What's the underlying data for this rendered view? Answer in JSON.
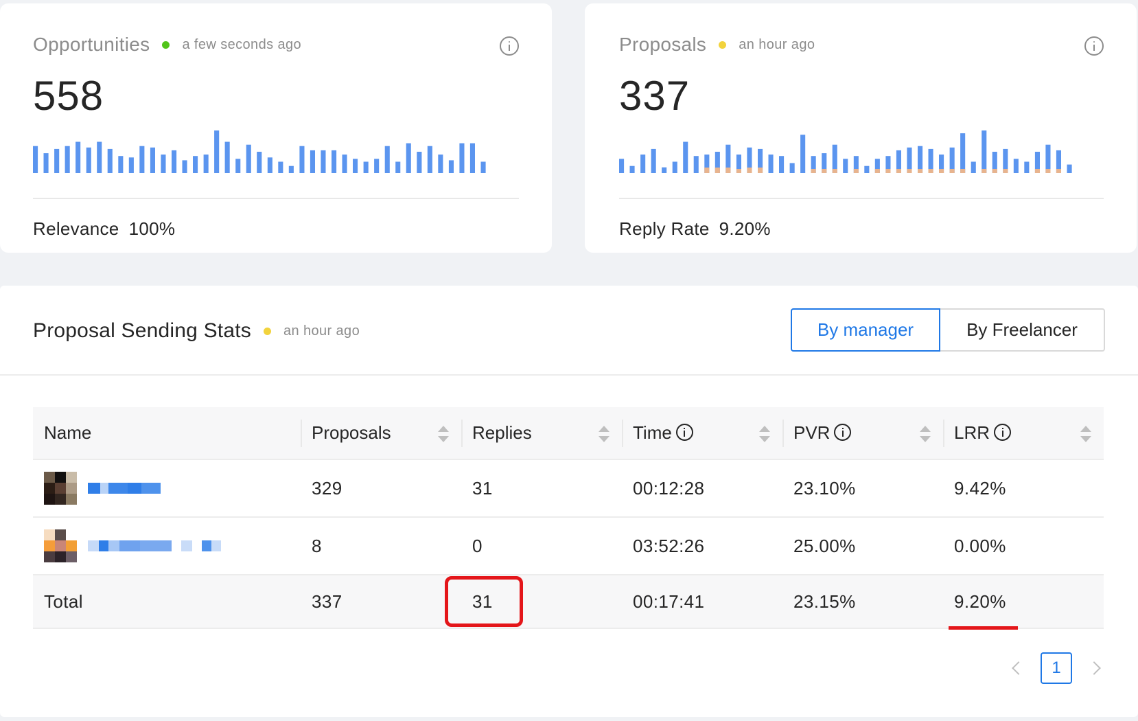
{
  "opportunities": {
    "title": "Opportunities",
    "status_color": "#52c41a",
    "updated": "a few seconds ago",
    "value": "558",
    "footer_label": "Relevance",
    "footer_value": "100%",
    "spark_color": "#5b95ef",
    "spark": [
      38,
      28,
      34,
      38,
      44,
      36,
      44,
      34,
      24,
      22,
      38,
      36,
      26,
      32,
      18,
      24,
      26,
      60,
      44,
      20,
      40,
      30,
      22,
      16,
      10,
      38,
      32,
      32,
      32,
      26,
      20,
      16,
      20,
      38,
      16,
      42,
      30,
      38,
      26,
      18,
      42,
      42,
      16
    ]
  },
  "proposals": {
    "title": "Proposals",
    "status_color": "#f2d33d",
    "updated": "an hour ago",
    "value": "337",
    "footer_label": "Reply Rate",
    "footer_value": "9.20%",
    "spark_color": "#5b95ef",
    "spark_secondary_color": "#e8b48e",
    "spark": [
      20,
      10,
      26,
      34,
      8,
      16,
      44,
      24,
      26,
      30,
      40,
      26,
      36,
      34,
      26,
      24,
      14,
      54,
      24,
      28,
      40,
      20,
      24,
      10,
      20,
      24,
      32,
      36,
      38,
      34,
      26,
      36,
      56,
      16,
      60,
      30,
      34,
      20,
      16,
      30,
      40,
      32,
      12
    ],
    "spark_secondary": [
      0,
      0,
      0,
      0,
      0,
      0,
      0,
      0,
      8,
      8,
      8,
      6,
      8,
      8,
      0,
      0,
      0,
      0,
      6,
      6,
      6,
      0,
      6,
      0,
      6,
      6,
      6,
      6,
      6,
      6,
      6,
      6,
      6,
      0,
      6,
      6,
      6,
      0,
      0,
      6,
      6,
      6,
      0
    ]
  },
  "stats": {
    "title": "Proposal Sending Stats",
    "status_color": "#f2d33d",
    "updated": "an hour ago",
    "toggle_manager": "By manager",
    "toggle_freelancer": "By Freelancer",
    "columns": [
      "Name",
      "Proposals",
      "Replies",
      "Time",
      "PVR",
      "LRR"
    ],
    "rows": [
      {
        "avatar_colors": [
          "#6b5a48",
          "#121010",
          "#c9bca8",
          "#2b1d15",
          "#5a3f33",
          "#ab9a85",
          "#1e1412",
          "#322620",
          "#8a7a62"
        ],
        "name_blocks": [
          [
            "#2f7ee8",
            18
          ],
          [
            "#b9d3f7",
            12
          ],
          [
            "#3d87ea",
            28
          ],
          [
            "#2f7ee8",
            20
          ],
          [
            "#4e92ec",
            28
          ]
        ],
        "proposals": "329",
        "replies": "31",
        "time": "00:12:28",
        "pvr": "23.10%",
        "lrr": "9.42%"
      },
      {
        "avatar_colors": [
          "#f6dcc0",
          "#5a4d4a",
          "#ffffff",
          "#f59d3a",
          "#c98677",
          "#f29f35",
          "#4a3c40",
          "#2b2228",
          "#6c5e66"
        ],
        "name_blocks": [
          [
            "#c6daf8",
            16
          ],
          [
            "#2f7ee8",
            14
          ],
          [
            "#a7c7f5",
            16
          ],
          [
            "#6fa2ee",
            30
          ],
          [
            "#7aa9ef",
            46
          ],
          [
            "#ffffff",
            14
          ],
          [
            "#c9dcf8",
            16
          ],
          [
            "#ffffff",
            14
          ],
          [
            "#4e92ec",
            14
          ],
          [
            "#c7dbf8",
            14
          ]
        ],
        "proposals": "8",
        "replies": "0",
        "time": "03:52:26",
        "pvr": "25.00%",
        "lrr": "0.00%"
      }
    ],
    "total": {
      "label": "Total",
      "proposals": "337",
      "replies": "31",
      "time": "00:17:41",
      "pvr": "23.15%",
      "lrr": "9.20%"
    },
    "page": "1"
  }
}
